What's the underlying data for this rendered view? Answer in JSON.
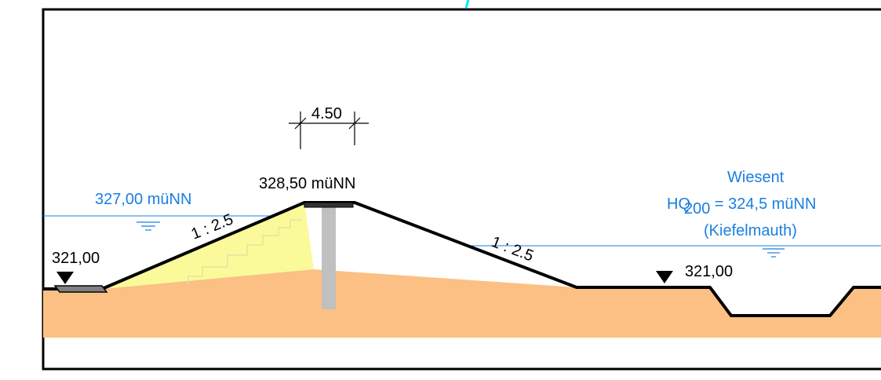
{
  "crest_width": "4.50",
  "crest_elevation": "328,50 müNN",
  "water_level_left": "327,00 müNN",
  "ground_level_left": "321,00",
  "ground_level_right": "321,00",
  "slope_left": "1 : 2.5",
  "slope_right": "1 : 2.5",
  "river": {
    "name": "Wiesent",
    "hq_prefix": "HQ",
    "hq_subscript": "200",
    "hq_value": " = 324,5 müNN",
    "gauge": "(Kiefelmauth)"
  },
  "colors": {
    "soil": "#fcc084",
    "fill_material": "#fafa9a",
    "water_line": "#1a7fe0",
    "dike_outline": "#000000",
    "core_wall": "#c0c0c0",
    "cyan_mark": "#00e5ff"
  }
}
